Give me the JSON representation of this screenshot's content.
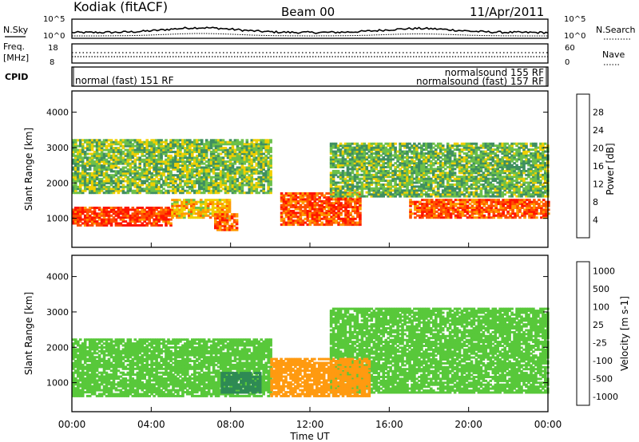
{
  "header": {
    "station": "Kodiak (fitACF)",
    "beam": "Beam 00",
    "date": "11/Apr/2011"
  },
  "noise_panel": {
    "left_label": "N.Sky",
    "right_label": "N.Search",
    "left_ticks": [
      "10^5",
      "10^0"
    ],
    "right_ticks": [
      "10^5",
      "10^0"
    ]
  },
  "freq_panel": {
    "left_label_line1": "Freq.",
    "left_label_line2": "[MHz]",
    "left_ticks": [
      "18",
      "8"
    ],
    "right_label": "Nave",
    "right_ticks": [
      "60",
      "0"
    ]
  },
  "cpid_panel": {
    "label": "CPID",
    "entries": [
      "normal (fast) 151 RF",
      "normalsound 155 RF",
      "normalsound (fast) 157 RF"
    ]
  },
  "colors": {
    "power": [
      "#1a1aff",
      "#3a55c0",
      "#3f8f60",
      "#6cc04a",
      "#f0d000",
      "#ff9a00",
      "#ff5000",
      "#ff1500"
    ],
    "velocity": [
      "#2536b6",
      "#1c6e9c",
      "#2e8a54",
      "#58c83a",
      "#c8c8c8",
      "#ff9a10",
      "#ff6a00",
      "#ff1a00"
    ]
  },
  "chart_data": [
    {
      "type": "heatmap",
      "ylabel": "Slant Range [km]",
      "yticks": [
        "1000",
        "2000",
        "3000",
        "4000"
      ],
      "ylim": [
        180,
        4600
      ],
      "colorbar_label": "Power [dB]",
      "colorbar_ticks": [
        "4",
        "8",
        "12",
        "16",
        "20",
        "24",
        "28"
      ],
      "colorbar_range": [
        0,
        32
      ],
      "x": [
        "00:00",
        "04:00",
        "08:00",
        "12:00",
        "16:00",
        "20:00",
        "00:00"
      ],
      "series": [
        {
          "start": "00:00",
          "end": "05:00",
          "range_km": [
            780,
            1320
          ],
          "value": 28
        },
        {
          "start": "05:00",
          "end": "08:00",
          "range_km": [
            1000,
            1500
          ],
          "value": 20
        },
        {
          "start": "07:10",
          "end": "08:20",
          "range_km": [
            650,
            1100
          ],
          "value": 26
        },
        {
          "start": "10:30",
          "end": "14:30",
          "range_km": [
            800,
            1700
          ],
          "value": 26
        },
        {
          "start": "17:00",
          "end": "24:00",
          "range_km": [
            1000,
            1500
          ],
          "value": 26
        },
        {
          "start": "00:00",
          "end": "10:00",
          "range_km": [
            1700,
            3200
          ],
          "value": 14
        },
        {
          "start": "13:00",
          "end": "24:00",
          "range_km": [
            1600,
            3100
          ],
          "value": 13
        }
      ]
    },
    {
      "type": "heatmap",
      "ylabel": "Slant Range [km]",
      "yticks": [
        "1000",
        "2000",
        "3000",
        "4000"
      ],
      "ylim": [
        180,
        4600
      ],
      "colorbar_label": "Velocity [m s-1]",
      "colorbar_ticks": [
        "1000",
        "500",
        "100",
        "25",
        "-25",
        "-100",
        "-500",
        "-1000"
      ],
      "xlabel": "Time UT",
      "x": [
        "00:00",
        "04:00",
        "08:00",
        "12:00",
        "16:00",
        "20:00",
        "00:00"
      ],
      "series": [
        {
          "start": "00:00",
          "end": "10:00",
          "range_km": [
            600,
            2200
          ],
          "value": 0
        },
        {
          "start": "13:00",
          "end": "24:00",
          "range_km": [
            700,
            3100
          ],
          "value": 0
        },
        {
          "start": "07:30",
          "end": "09:30",
          "range_km": [
            700,
            1300
          ],
          "value": 60
        },
        {
          "start": "10:00",
          "end": "15:00",
          "range_km": [
            600,
            1700
          ],
          "value": -300
        }
      ]
    }
  ]
}
